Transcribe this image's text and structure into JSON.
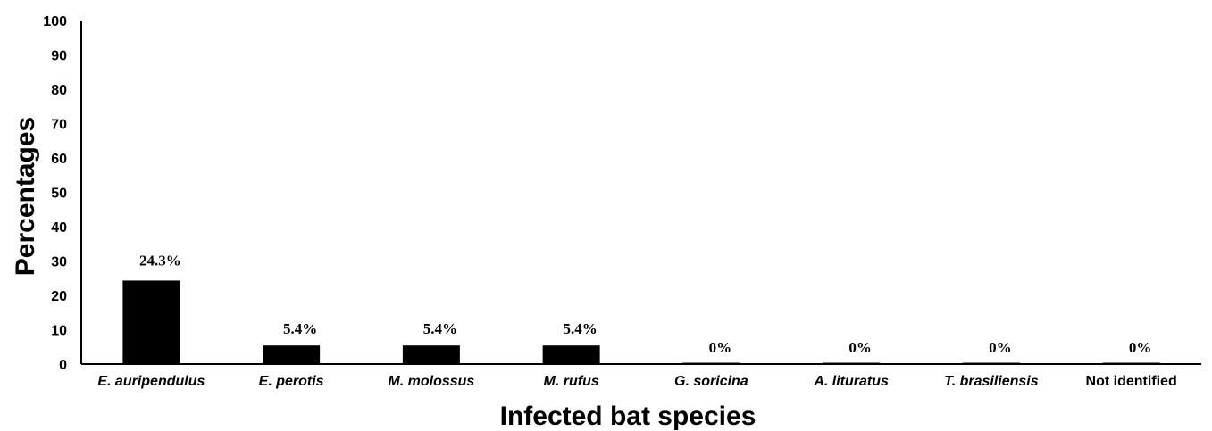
{
  "chart_data": {
    "type": "bar",
    "title": "",
    "xlabel": "Infected bat species",
    "ylabel": "Percentages",
    "ylim": [
      0,
      100
    ],
    "yticks": [
      0,
      10,
      20,
      30,
      40,
      50,
      60,
      70,
      80,
      90,
      100
    ],
    "grid": false,
    "categories": [
      {
        "label": "E. auripendulus",
        "italic": true
      },
      {
        "label": "E. perotis",
        "italic": true
      },
      {
        "label": "M. molossus",
        "italic": true
      },
      {
        "label": "M. rufus",
        "italic": true
      },
      {
        "label": "G. soricina",
        "italic": true
      },
      {
        "label": "A. lituratus",
        "italic": true
      },
      {
        "label": "T. brasiliensis",
        "italic": true
      },
      {
        "label": "Not identified",
        "italic": false
      }
    ],
    "values": [
      24.3,
      5.4,
      5.4,
      5.4,
      0,
      0,
      0,
      0
    ],
    "data_labels": [
      "24.3%",
      "5.4%",
      "5.4%",
      "5.4%",
      "0%",
      "0%",
      "0%",
      "0%"
    ],
    "bar_color": "#000000"
  }
}
